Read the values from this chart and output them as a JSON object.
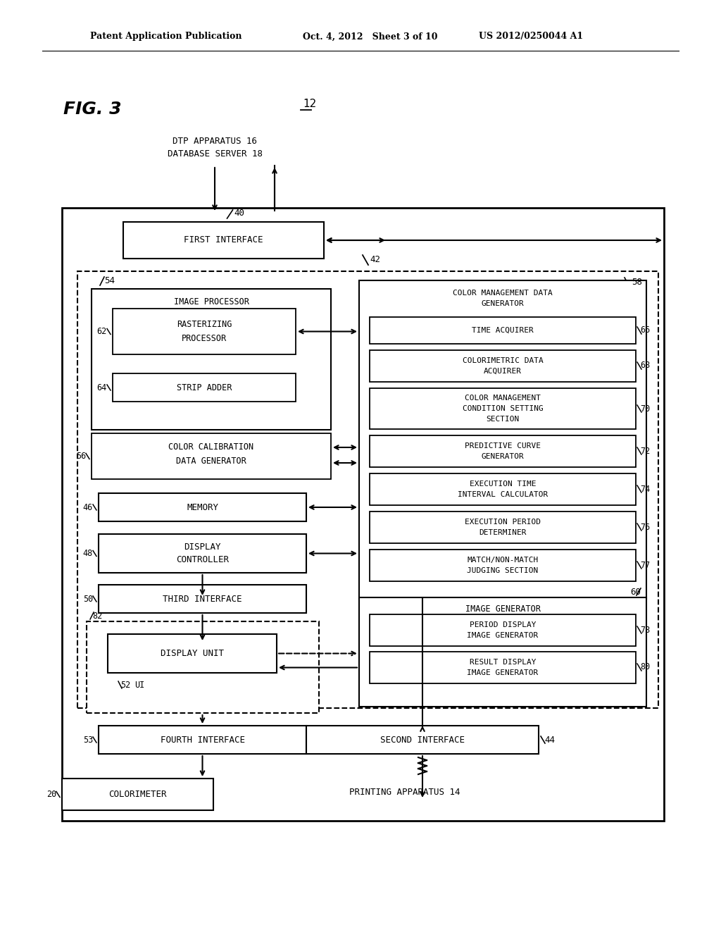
{
  "header_left": "Patent Application Publication",
  "header_center": "Oct. 4, 2012   Sheet 3 of 10",
  "header_right": "US 2012/0250044 A1",
  "bg_color": "#ffffff",
  "text_color": "#000000"
}
